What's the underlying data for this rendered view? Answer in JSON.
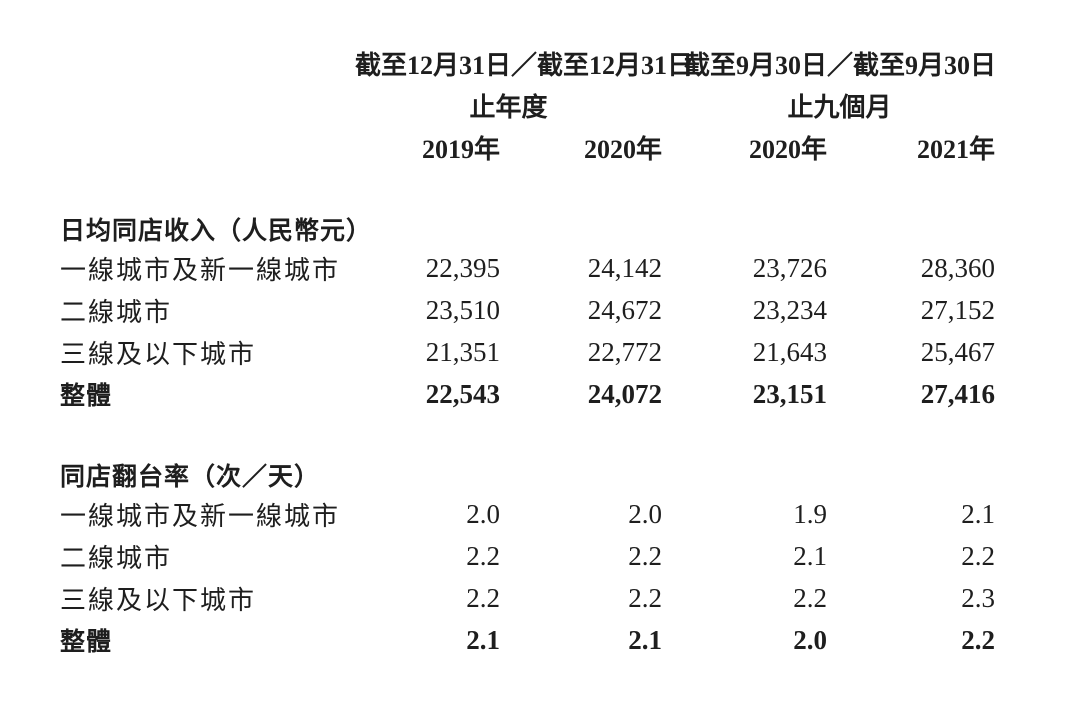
{
  "page": {
    "background_color": "#ffffff",
    "text_color": "#1e1e1e"
  },
  "table": {
    "header": {
      "group1": {
        "line1": "截至12月31日／截至12月31日",
        "line2": "止年度"
      },
      "group2": {
        "line1": "截至9月30日／截至9月30日",
        "line2": "止九個月"
      },
      "year_columns": [
        "2019年",
        "2020年",
        "2020年",
        "2021年"
      ]
    },
    "sections": [
      {
        "title": "日均同店收入（人民幣元）",
        "rows": [
          {
            "label": "一線城市及新一線城市",
            "bold": false,
            "values": [
              "22,395",
              "24,142",
              "23,726",
              "28,360"
            ]
          },
          {
            "label": "二線城市",
            "bold": false,
            "values": [
              "23,510",
              "24,672",
              "23,234",
              "27,152"
            ]
          },
          {
            "label": "三線及以下城市",
            "bold": false,
            "values": [
              "21,351",
              "22,772",
              "21,643",
              "25,467"
            ]
          },
          {
            "label": "整體",
            "bold": true,
            "values": [
              "22,543",
              "24,072",
              "23,151",
              "27,416"
            ]
          }
        ]
      },
      {
        "title": "同店翻台率（次／天）",
        "rows": [
          {
            "label": "一線城市及新一線城市",
            "bold": false,
            "values": [
              "2.0",
              "2.0",
              "1.9",
              "2.1"
            ]
          },
          {
            "label": "二線城市",
            "bold": false,
            "values": [
              "2.2",
              "2.2",
              "2.1",
              "2.2"
            ]
          },
          {
            "label": "三線及以下城市",
            "bold": false,
            "values": [
              "2.2",
              "2.2",
              "2.2",
              "2.3"
            ]
          },
          {
            "label": "整體",
            "bold": true,
            "values": [
              "2.1",
              "2.1",
              "2.0",
              "2.2"
            ]
          }
        ]
      }
    ]
  }
}
